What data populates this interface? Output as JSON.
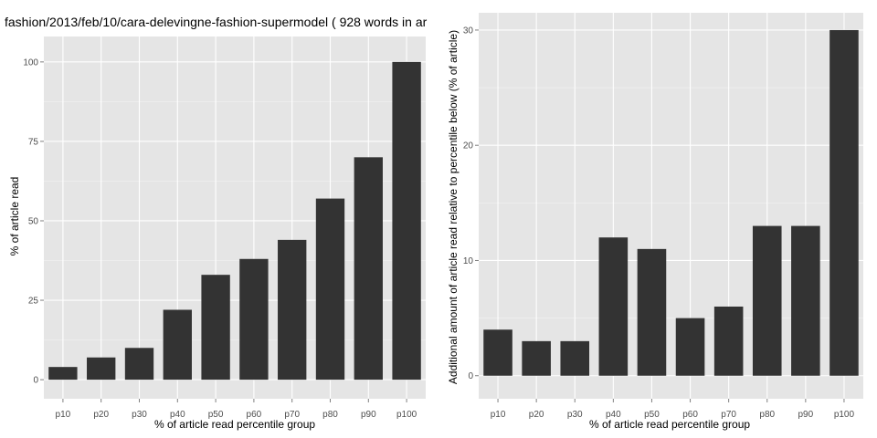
{
  "chart_data": [
    {
      "type": "bar",
      "title": "fashion/2013/feb/10/cara-delevingne-fashion-supermodel ( 928 words in ar",
      "xlabel": "% of article read percentile group",
      "ylabel": "% of article read",
      "categories": [
        "p10",
        "p20",
        "p30",
        "p40",
        "p50",
        "p60",
        "p70",
        "p80",
        "p90",
        "p100"
      ],
      "values": [
        4,
        7,
        10,
        22,
        33,
        38,
        44,
        57,
        70,
        100
      ],
      "ylim": [
        -6,
        108
      ],
      "yticks": [
        "0",
        "25",
        "50",
        "75",
        "100"
      ],
      "grid": true,
      "colors": {
        "bar": "#333333",
        "panel": "#e5e5e5",
        "grid": "#ffffff"
      }
    },
    {
      "type": "bar",
      "title": "",
      "xlabel": "% of article read percentile group",
      "ylabel": "Additional amount of article read relative to percentile below (% of article)",
      "categories": [
        "p10",
        "p20",
        "p30",
        "p40",
        "p50",
        "p60",
        "p70",
        "p80",
        "p90",
        "p100"
      ],
      "values": [
        4,
        3,
        3,
        12,
        11,
        5,
        6,
        13,
        13,
        30
      ],
      "ylim": [
        -2,
        31.5
      ],
      "yticks": [
        "0",
        "10",
        "20",
        "30"
      ],
      "grid": true,
      "colors": {
        "bar": "#333333",
        "panel": "#e5e5e5",
        "grid": "#ffffff"
      }
    }
  ]
}
